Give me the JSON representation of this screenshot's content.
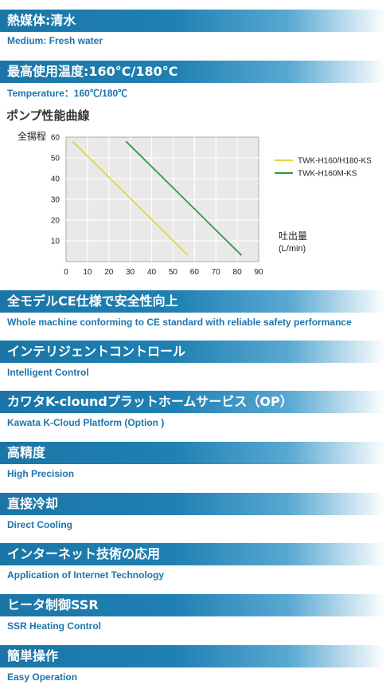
{
  "sections": [
    {
      "title": "熱媒体:清水",
      "subtitle": "Medium: Fresh water"
    },
    {
      "title": "最高使用温度:160°C/180°C",
      "subtitle": "Temperature：160℃/180℃"
    },
    {
      "title": "全モデルCE仕様で安全性向上",
      "subtitle": "Whole machine conforming to CE standard with reliable safety performance"
    },
    {
      "title": "インテリジェントコントロール",
      "subtitle": "Intelligent Control"
    },
    {
      "title": "カワタK-cloundプラットホームサービス（OP）",
      "subtitle": "Kawata K-Cloud Platform (Option )"
    },
    {
      "title": "高精度",
      "subtitle": "High Precision"
    },
    {
      "title": "直接冷却",
      "subtitle": "Direct Cooling"
    },
    {
      "title": "インターネット技術の応用",
      "subtitle": "Application of Internet Technology"
    },
    {
      "title": "ヒータ制御SSR",
      "subtitle": "SSR Heating Control"
    },
    {
      "title": "簡単操作",
      "subtitle": "Easy Operation"
    }
  ],
  "colors": {
    "bar": "#1f80b3",
    "subtitle": "#1d74ad",
    "series_yellow": "#e4d548",
    "series_green": "#2f9a52"
  },
  "chart_data": {
    "type": "line",
    "title": "ポンプ性能曲線",
    "ylabel": "全揚程",
    "xlabel_line1": "吐出量",
    "xlabel_line2": "(L/min)",
    "xlim": [
      0,
      90
    ],
    "ylim": [
      0,
      60
    ],
    "xticks": [
      0,
      10,
      20,
      30,
      40,
      50,
      60,
      70,
      80,
      90
    ],
    "yticks": [
      10,
      20,
      30,
      40,
      50,
      60
    ],
    "grid": true,
    "legend_position": "right",
    "series": [
      {
        "name": "TWK-H160/H180-KS",
        "color": "#e4d548",
        "x": [
          3,
          57
        ],
        "y": [
          58,
          3
        ]
      },
      {
        "name": "TWK-H160M-KS",
        "color": "#2f9a52",
        "x": [
          28,
          82
        ],
        "y": [
          58,
          3
        ]
      }
    ]
  }
}
